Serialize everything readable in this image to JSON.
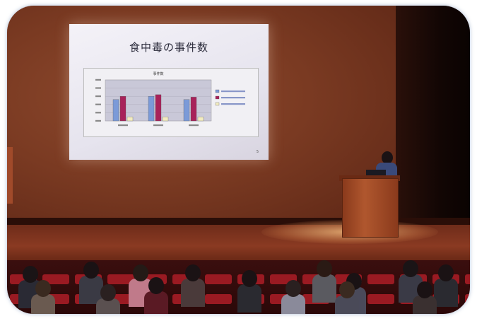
{
  "slide": {
    "title": "食中毒の事件数",
    "chart_title": "事件数",
    "page_number": "5"
  },
  "chart_data": {
    "type": "bar",
    "categories": [
      "",
      "",
      ""
    ],
    "series": [
      {
        "name": "",
        "color": "#7b9ad8",
        "values": [
          2.6,
          3.0,
          2.6
        ]
      },
      {
        "name": "",
        "color": "#a8225a",
        "values": [
          3.0,
          3.2,
          2.9
        ]
      },
      {
        "name": "",
        "color": "#f2ecc0",
        "values": [
          0.5,
          0.5,
          0.5
        ]
      }
    ],
    "ylim": [
      0,
      5
    ],
    "grid": true,
    "legend": "right"
  }
}
